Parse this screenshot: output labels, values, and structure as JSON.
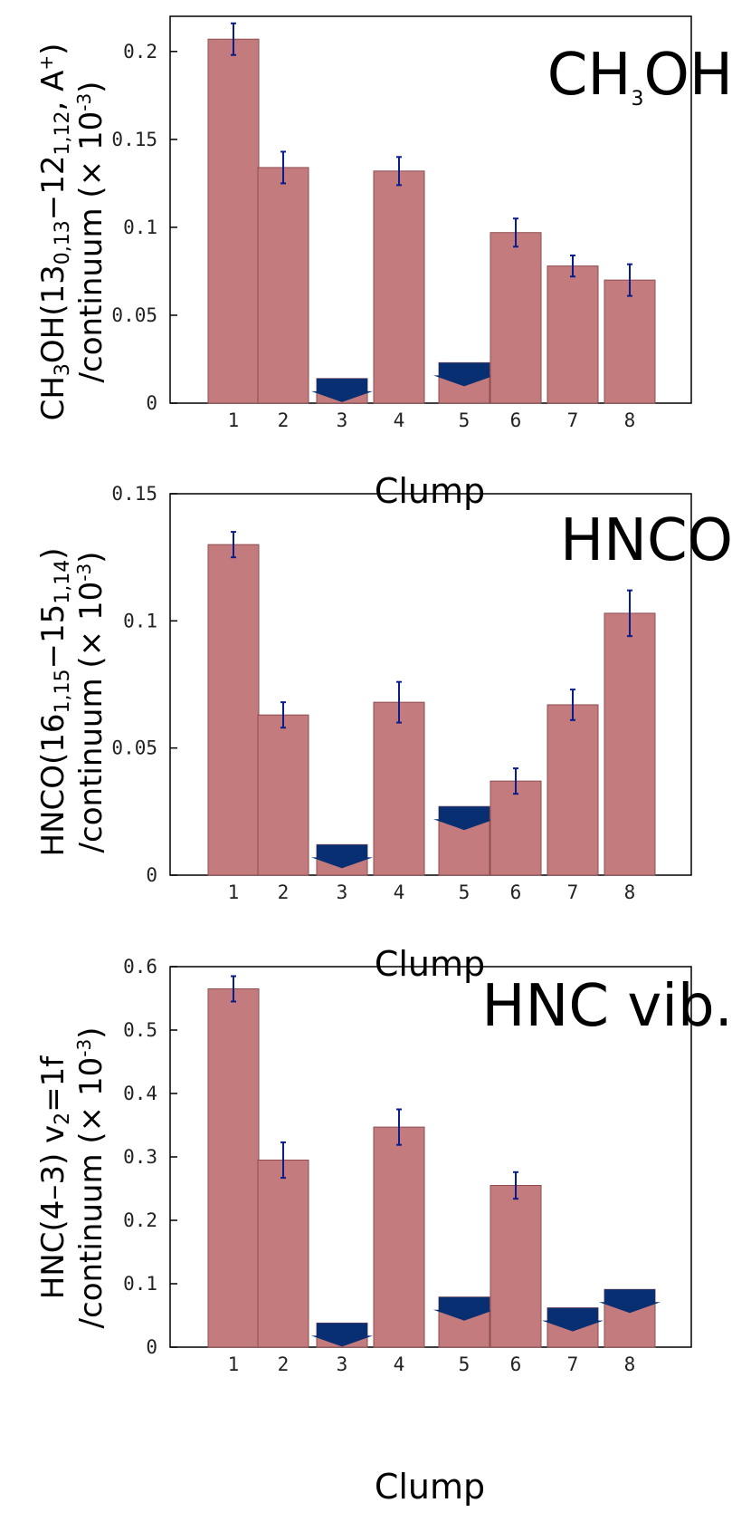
{
  "chart_data": [
    {
      "type": "bar",
      "title": "CH₃OH",
      "xlabel": "Clump",
      "ylabel_line1": {
        "pre": "CH",
        "sub1": "3",
        "mid": "OH(13",
        "sub2": "0,13",
        "dash": "−12",
        "sub3": "1,12",
        "post": ", A",
        "sup": "+",
        "end": ")"
      },
      "ylabel_line2": {
        "pre": "/continuum (× 10",
        "sup": "-3",
        "end": ")"
      },
      "ylim": [
        0,
        0.22
      ],
      "yticks": [
        0,
        0.05,
        0.1,
        0.15,
        0.2
      ],
      "ytick_labels": [
        "0",
        "0.05",
        "0.1",
        "0.15",
        "0.2"
      ],
      "categories": [
        "1",
        "2",
        "3",
        "4",
        "5",
        "6",
        "7",
        "8"
      ],
      "values": [
        0.207,
        0.134,
        null,
        0.132,
        null,
        0.097,
        0.078,
        0.07
      ],
      "errors": [
        0.009,
        0.009,
        null,
        0.008,
        null,
        0.008,
        0.006,
        0.009
      ],
      "upper_limits": [
        null,
        null,
        0.014,
        null,
        0.023,
        null,
        null,
        null
      ]
    },
    {
      "type": "bar",
      "title": "HNCO",
      "xlabel": "Clump",
      "ylabel_line1": {
        "pre": "HNCO(16",
        "sub1": "1,15",
        "dash": "−15",
        "sub2": "1,14",
        "end": ")"
      },
      "ylabel_line2": {
        "pre": "/continuum (× 10",
        "sup": "-3",
        "end": ")"
      },
      "ylim": [
        0,
        0.15
      ],
      "yticks": [
        0,
        0.05,
        0.1,
        0.15
      ],
      "ytick_labels": [
        "0",
        "0.05",
        "0.1",
        "0.15"
      ],
      "categories": [
        "1",
        "2",
        "3",
        "4",
        "5",
        "6",
        "7",
        "8"
      ],
      "values": [
        0.13,
        0.063,
        null,
        0.068,
        null,
        0.037,
        0.067,
        0.103
      ],
      "errors": [
        0.005,
        0.005,
        null,
        0.008,
        null,
        0.005,
        0.006,
        0.009
      ],
      "upper_limits": [
        null,
        null,
        0.012,
        null,
        0.027,
        null,
        null,
        null
      ]
    },
    {
      "type": "bar",
      "title": "HNC vib.",
      "xlabel": "Clump",
      "ylabel_line1": {
        "pre": "HNC(4–3) v",
        "sub1": "2",
        "end": "=1f"
      },
      "ylabel_line2": {
        "pre": "/continuum (× 10",
        "sup": "-3",
        "end": ")"
      },
      "ylim": [
        0,
        0.6
      ],
      "yticks": [
        0,
        0.1,
        0.2,
        0.3,
        0.4,
        0.5,
        0.6
      ],
      "ytick_labels": [
        "0",
        "0.1",
        "0.2",
        "0.3",
        "0.4",
        "0.5",
        "0.6"
      ],
      "categories": [
        "1",
        "2",
        "3",
        "4",
        "5",
        "6",
        "7",
        "8"
      ],
      "values": [
        0.565,
        0.295,
        null,
        0.347,
        null,
        0.255,
        null,
        null
      ],
      "errors": [
        0.02,
        0.028,
        null,
        0.028,
        null,
        0.021,
        null,
        null
      ],
      "upper_limits": [
        null,
        null,
        0.038,
        null,
        0.079,
        null,
        0.062,
        0.091
      ]
    }
  ],
  "colors": {
    "bar_fill": "#c47b7d",
    "bar_stroke": "#8e4c50",
    "error_bar": "#0a1d8c",
    "upper_limit_arrow": "#082f72",
    "axis": "#000000"
  }
}
